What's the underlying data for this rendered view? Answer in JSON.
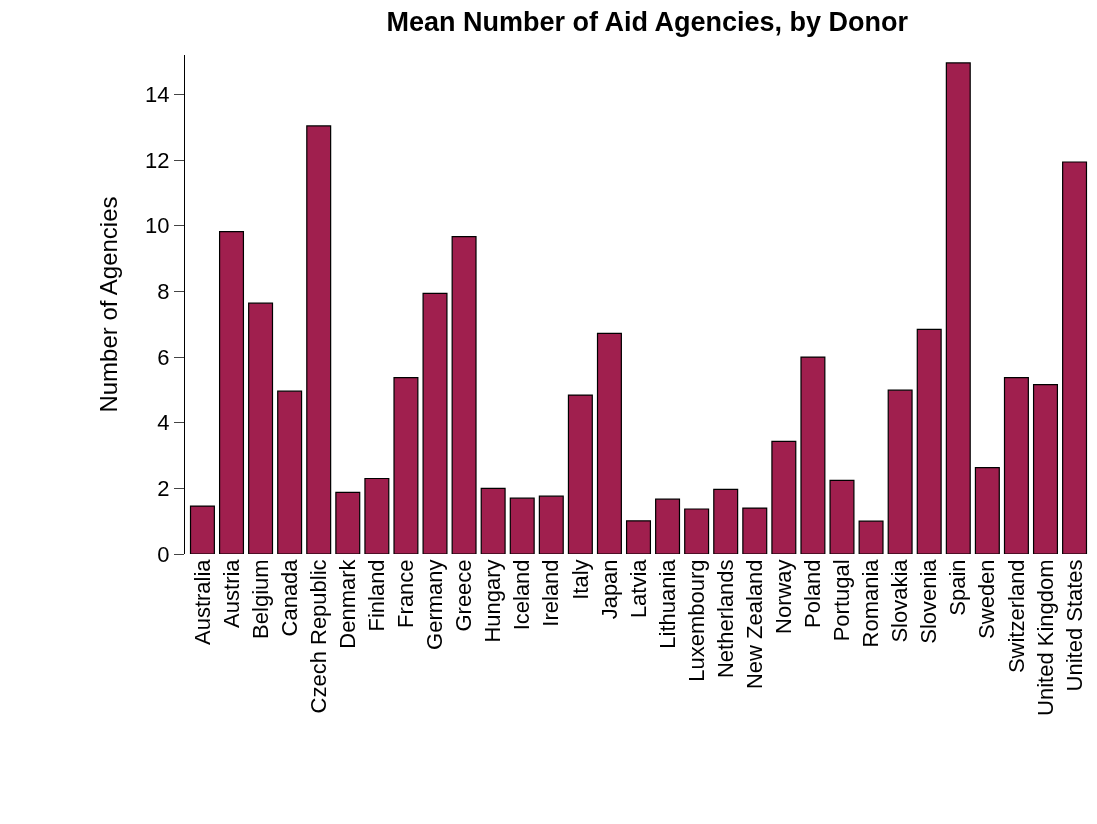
{
  "chart_data": {
    "type": "bar",
    "title": "Mean Number of Aid Agencies, by Donor",
    "ylabel": "Number of Agencies",
    "categories": [
      "Australia",
      "Austria",
      "Belgium",
      "Canada",
      "Czech Republic",
      "Denmark",
      "Finland",
      "France",
      "Germany",
      "Greece",
      "Hungary",
      "Iceland",
      "Ireland",
      "Italy",
      "Japan",
      "Latvia",
      "Lithuania",
      "Luxembourg",
      "Netherlands",
      "New Zealand",
      "Norway",
      "Poland",
      "Portugal",
      "Romania",
      "Slovakia",
      "Slovenia",
      "Spain",
      "Sweden",
      "Switzerland",
      "United Kingdom",
      "United States"
    ],
    "values": [
      1.46,
      9.82,
      7.64,
      4.96,
      13.04,
      1.88,
      2.3,
      5.37,
      7.94,
      9.67,
      2.0,
      1.7,
      1.76,
      4.84,
      6.72,
      1.01,
      1.67,
      1.37,
      1.97,
      1.4,
      3.43,
      6.0,
      2.24,
      1.0,
      4.99,
      6.84,
      14.96,
      2.63,
      5.37,
      5.16,
      11.94
    ],
    "color": "#a01f4e",
    "ylim": [
      0,
      15.2
    ],
    "yticks": [
      0,
      2,
      4,
      6,
      8,
      10,
      12,
      14
    ],
    "grid": false
  }
}
